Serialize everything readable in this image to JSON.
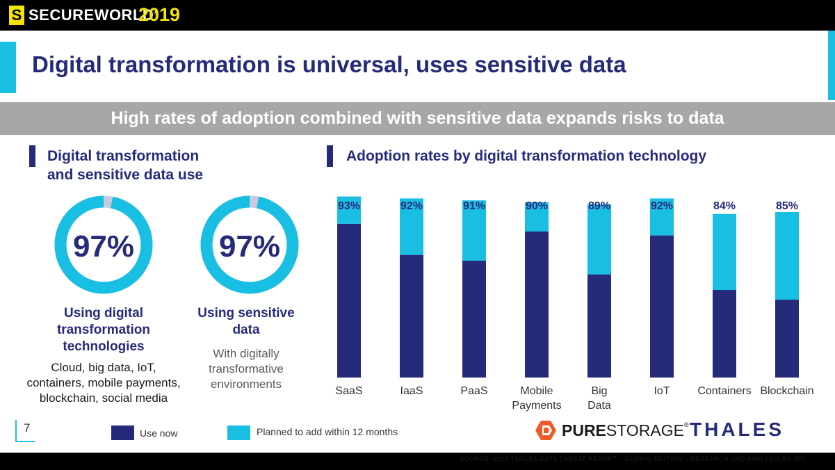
{
  "header": {
    "logo_mark": "S",
    "brand": "SECUREWORLD",
    "brand_mark": "®",
    "year": "2019"
  },
  "title": "Digital transformation is universal, uses sensitive data",
  "banner": "High rates of adoption combined with sensitive data expands risks to data",
  "left_section": {
    "title_line1": "Digital transformation",
    "title_line2": "and sensitive data use",
    "rings": [
      {
        "percent_text": "97%",
        "value": 97,
        "label_lines": [
          "Using digital",
          "transformation",
          "technologies"
        ],
        "desc_lines": [
          "Cloud, big data, IoT,",
          "containers, mobile payments,",
          "blockchain, social media"
        ],
        "ring_color": "#18bfe3",
        "remainder_color": "#c9cadf"
      },
      {
        "percent_text": "97%",
        "value": 97,
        "label_lines": [
          "Using sensitive",
          "data"
        ],
        "desc_lines": [
          "With digitally",
          "transformative",
          "environments"
        ],
        "ring_color": "#18bfe3",
        "remainder_color": "#c9cadf"
      }
    ]
  },
  "right_section": {
    "title": "Adoption rates by digital transformation technology"
  },
  "chart_data": {
    "type": "bar",
    "stacked": true,
    "title": "Adoption rates by digital transformation technology",
    "categories": [
      "SaaS",
      "IaaS",
      "PaaS",
      "Mobile Payments",
      "Big Data",
      "IoT",
      "Containers",
      "Blockchain"
    ],
    "category_lines": [
      [
        "SaaS"
      ],
      [
        "IaaS"
      ],
      [
        "PaaS"
      ],
      [
        "Mobile",
        "Payments"
      ],
      [
        "Big",
        "Data"
      ],
      [
        "IoT"
      ],
      [
        "Containers"
      ],
      [
        "Blockchain"
      ]
    ],
    "totals": [
      93,
      92,
      91,
      90,
      89,
      92,
      84,
      85
    ],
    "total_labels": [
      "93%",
      "92%",
      "91%",
      "90%",
      "89%",
      "92%",
      "84%",
      "85%"
    ],
    "series": [
      {
        "name": "Use now",
        "color": "#262a7a",
        "values": [
          79,
          63,
          60,
          75,
          53,
          73,
          45,
          40
        ]
      },
      {
        "name": "Planned to add within 12 months",
        "color": "#18bfe3",
        "values": [
          14,
          29,
          31,
          15,
          36,
          19,
          39,
          45
        ]
      }
    ],
    "ylim": [
      0,
      100
    ],
    "grid": false,
    "legend": "bottom-left"
  },
  "legend": [
    {
      "label": "Use now",
      "color": "#262a7a"
    },
    {
      "label": "Planned to add within 12 months",
      "color": "#18bfe3"
    }
  ],
  "page_number": "7",
  "logos": {
    "pure_bold": "PURE",
    "pure_regular": "STORAGE",
    "pure_mark": "®",
    "thales": "THALES"
  },
  "source": "SOURCE: 2019 THALES DATA THREAT REPORT – GLOBAL EDITION – RESEARCH AND ANALYSIS BY IDC"
}
